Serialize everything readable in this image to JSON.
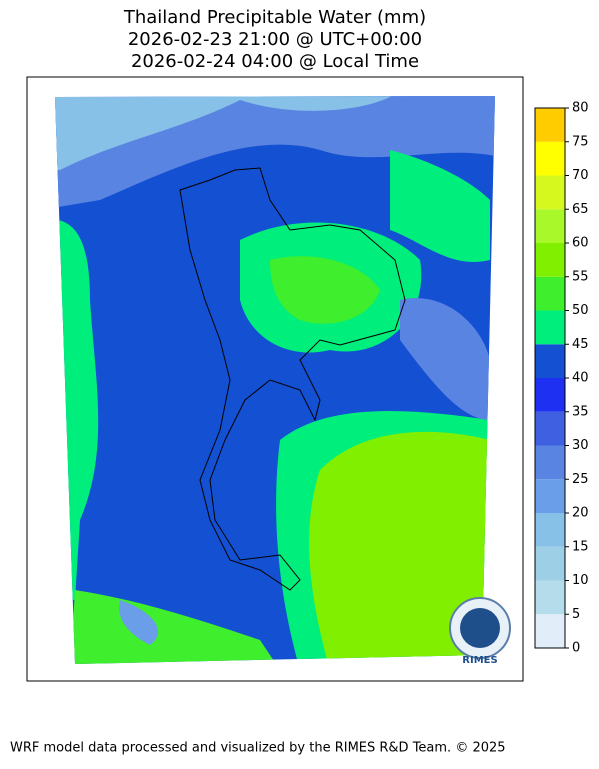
{
  "title": [
    "Thailand Precipitable Water (mm)",
    "2026-02-23 21:00 @ UTC+00:00",
    "2026-02-24 04:00 @ Local Time"
  ],
  "colorbar": {
    "bounds": [
      0,
      5,
      10,
      15,
      20,
      25,
      30,
      35,
      40,
      45,
      50,
      55,
      60,
      65,
      70,
      75,
      80
    ],
    "colors": [
      "#e1eef9",
      "#b5dcea",
      "#9dd0e6",
      "#87c1e8",
      "#6a9ee9",
      "#5a84e1",
      "#3f60e1",
      "#1e30f2",
      "#1450d2",
      "#00ee7c",
      "#3fee2c",
      "#80f000",
      "#a8f82a",
      "#d6f81e",
      "#ffff00",
      "#ffcc00"
    ]
  },
  "logo": "RIMES",
  "footer": "WRF model data processed and visualized by the RIMES R&D Team. © 2025"
}
